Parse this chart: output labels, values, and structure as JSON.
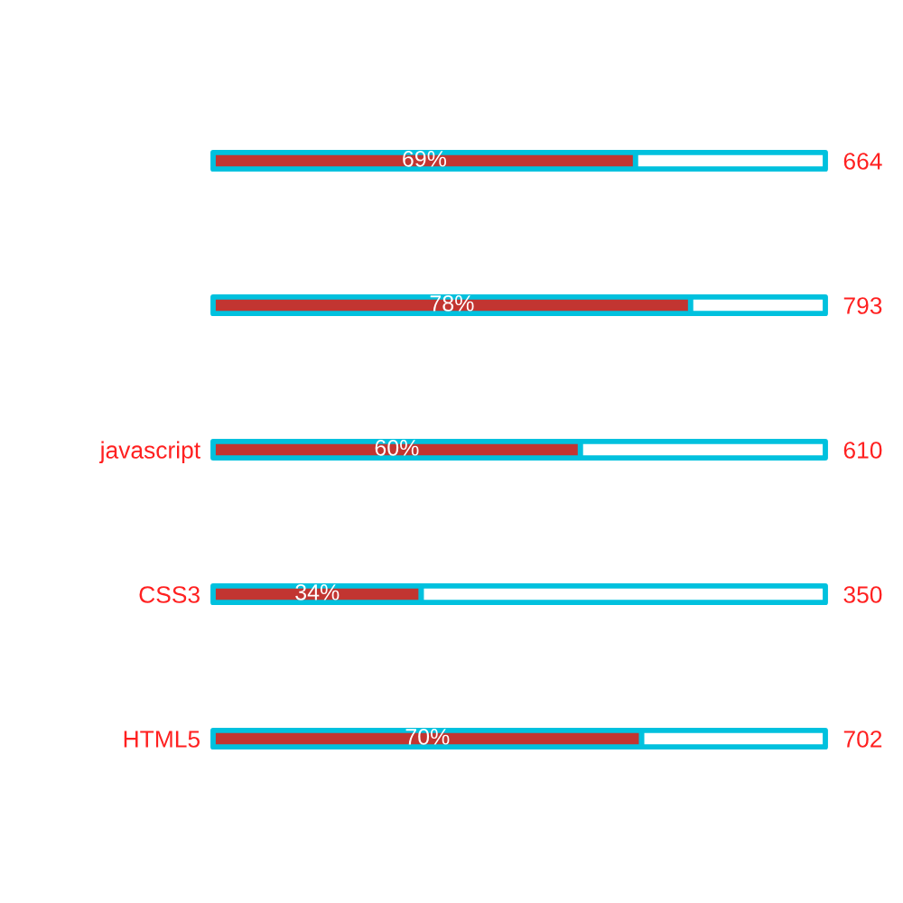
{
  "chart_data": {
    "type": "bar",
    "orientation": "horizontal",
    "stacked": true,
    "categories": [
      null,
      null,
      "javascript",
      "CSS3",
      "HTML5"
    ],
    "y2_categories": [
      "664",
      "793",
      "610",
      "350",
      "702"
    ],
    "series": [
      {
        "color": "#c23531",
        "values": [
          69,
          78,
          60,
          34,
          70
        ],
        "value_labels": [
          "69%",
          "78%",
          "60%",
          "34%",
          "70%"
        ]
      },
      {
        "color": "#ffffff",
        "values": [
          31,
          22,
          40,
          66,
          30
        ]
      }
    ],
    "tick_labels": "y"
  }
}
